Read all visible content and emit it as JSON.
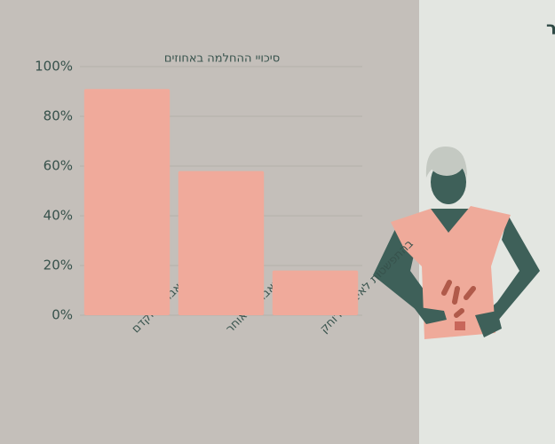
{
  "chart_data": {
    "type": "bar",
    "title": "ההשלכות של גילוי מאוחר",
    "subtitle": "סיכויי ההחלמה באחוזים",
    "categories": [
      "באבחון מוקדם",
      "באבחון מאוחר",
      "בהתפשטות לאיבר מרוחק"
    ],
    "values": [
      91,
      58,
      18
    ],
    "color": "#f0aa9b",
    "ylim": [
      0,
      100
    ],
    "yticks": [
      {
        "value": 0,
        "label": "0%"
      },
      {
        "value": 20,
        "label": "20%"
      },
      {
        "value": 40,
        "label": "40%"
      },
      {
        "value": 60,
        "label": "60%"
      },
      {
        "value": 80,
        "label": "80%"
      },
      {
        "value": 100,
        "label": "100%"
      }
    ],
    "grid": true
  }
}
